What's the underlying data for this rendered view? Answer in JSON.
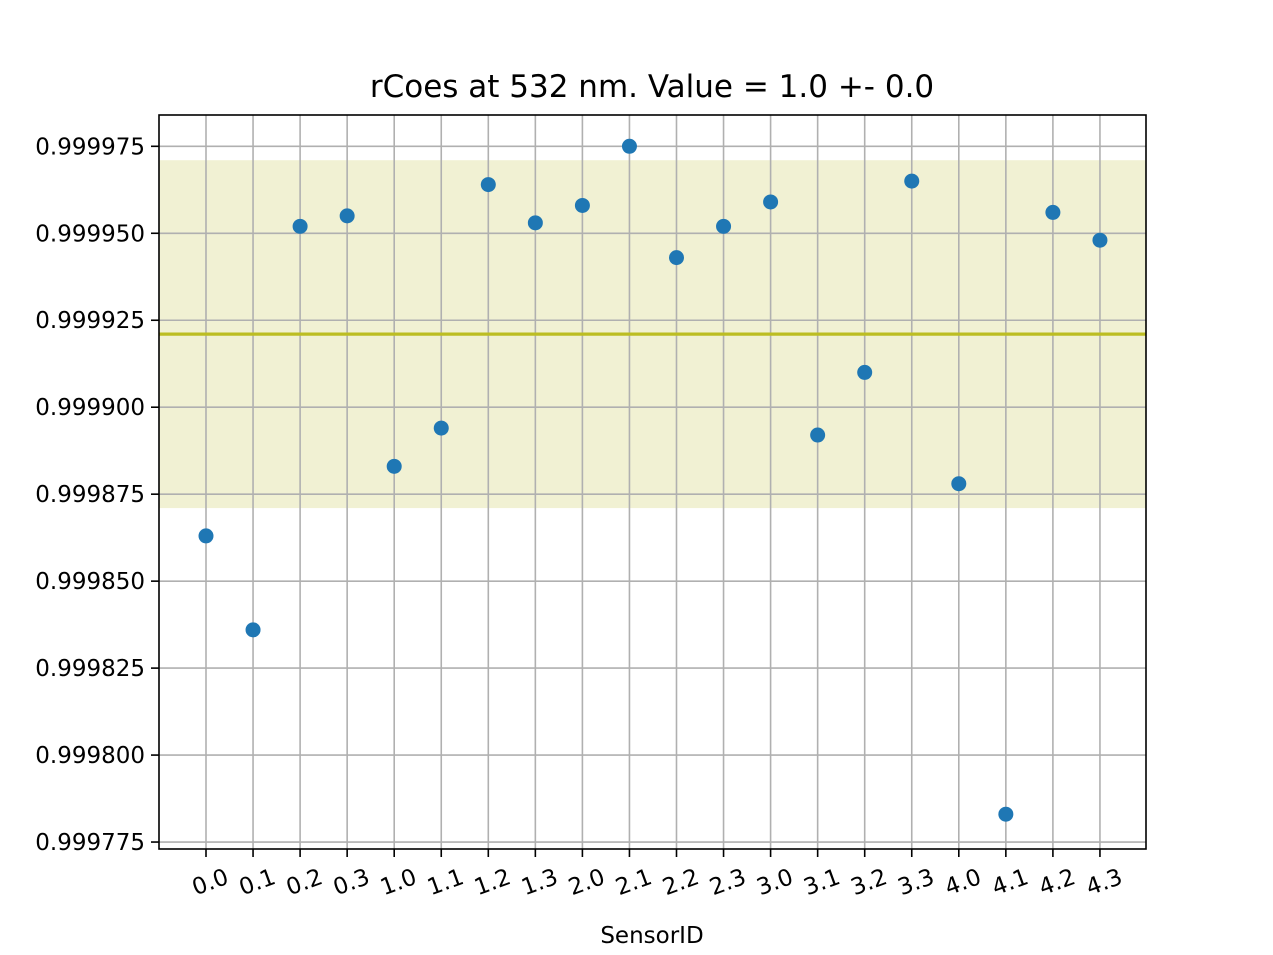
{
  "chart_data": {
    "type": "scatter",
    "title": "rCoes at 532 nm. Value = 1.0 +- 0.0",
    "xlabel": "SensorID",
    "ylabel": "",
    "categories": [
      "0.0",
      "0.1",
      "0.2",
      "0.3",
      "1.0",
      "1.1",
      "1.2",
      "1.3",
      "2.0",
      "2.1",
      "2.2",
      "2.3",
      "3.0",
      "3.1",
      "3.2",
      "3.3",
      "4.0",
      "4.1",
      "4.2",
      "4.3"
    ],
    "values": [
      0.999863,
      0.999836,
      0.999952,
      0.999955,
      0.999883,
      0.999894,
      0.999964,
      0.999953,
      0.999958,
      0.999975,
      0.999943,
      0.999952,
      0.999959,
      0.999892,
      0.99991,
      0.999965,
      0.999878,
      0.999783,
      0.999956,
      0.999948
    ],
    "ylim": [
      0.999773,
      0.999984
    ],
    "yticks": [
      0.999775,
      0.9998,
      0.999825,
      0.99985,
      0.999875,
      0.9999,
      0.999925,
      0.99995,
      0.999975
    ],
    "ytick_labels": [
      "0.999775",
      "0.999800",
      "0.999825",
      "0.999850",
      "0.999875",
      "0.999900",
      "0.999925",
      "0.999950",
      "0.999975"
    ],
    "mean_line": 0.999921,
    "band": [
      0.999871,
      0.999971
    ],
    "grid": true,
    "colors": {
      "points": "#1f77b4",
      "mean_line": "#bcbd22",
      "band": "#f1f1d3",
      "grid": "#b0b0b0"
    }
  }
}
